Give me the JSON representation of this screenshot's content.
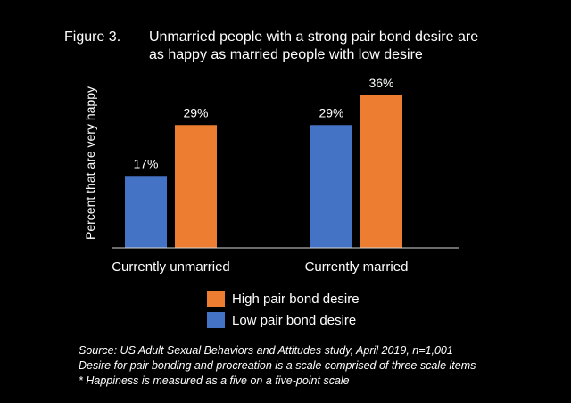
{
  "figure_label": "Figure 3.",
  "title_lines": [
    "Unmarried people with a strong pair bond desire are",
    "as happy as married people with low desire"
  ],
  "colors": {
    "background": "#000000",
    "text": "#ffffff",
    "high": "#ED7D31",
    "low": "#4472C4"
  },
  "chart_data": {
    "type": "bar",
    "ylabel": "Percent that are very happy",
    "ylim": [
      0,
      40
    ],
    "grid": false,
    "legend_position": "bottom",
    "groups": [
      {
        "category": "Currently unmarried",
        "bars": [
          {
            "series": "Low pair bond desire",
            "value": 17,
            "label": "17%"
          },
          {
            "series": "High pair bond desire",
            "value": 29,
            "label": "29%"
          }
        ]
      },
      {
        "category": "Currently married",
        "bars": [
          {
            "series": "Low pair bond desire",
            "value": 29,
            "label": "29%"
          },
          {
            "series": "High pair bond desire",
            "value": 36,
            "label": "36%"
          }
        ]
      }
    ],
    "legend": [
      {
        "name": "High pair bond desire",
        "color": "#ED7D31"
      },
      {
        "name": "Low pair bond desire",
        "color": "#4472C4"
      }
    ]
  },
  "notes": [
    "Source: US Adult Sexual Behaviors and Attitudes study, April 2019, n=1,001",
    "Desire for pair bonding and procreation is a scale comprised of three scale items",
    "* Happiness is measured as a five on a five-point scale"
  ]
}
